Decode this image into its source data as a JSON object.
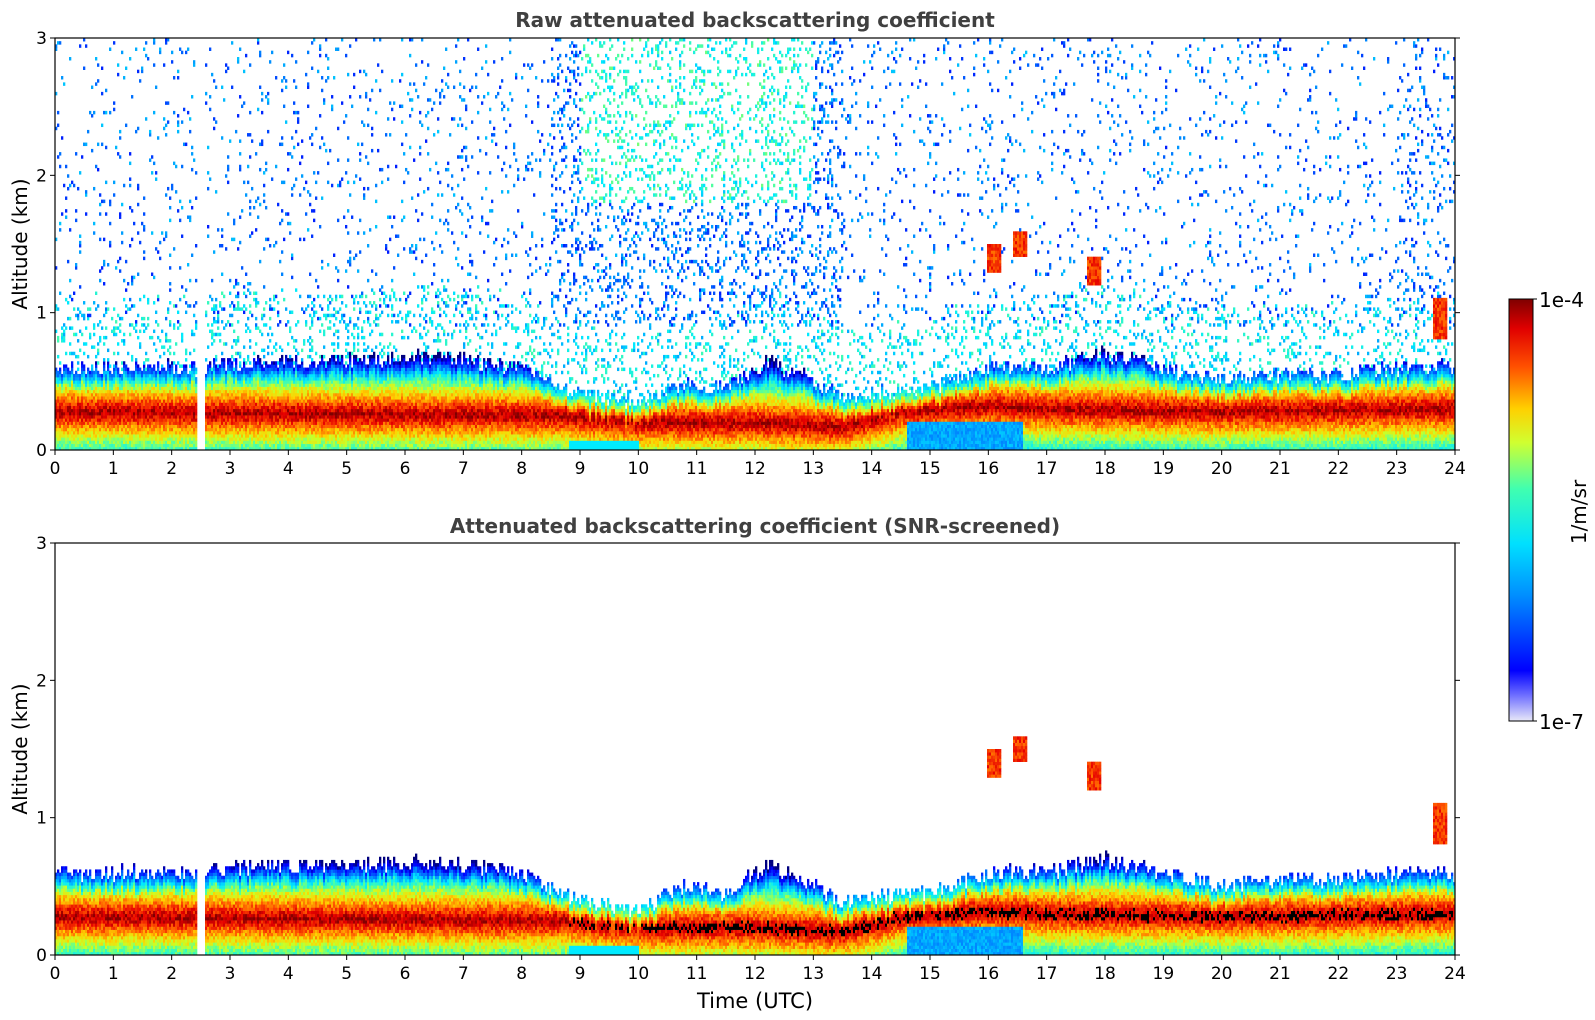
{
  "chart_data": [
    {
      "type": "heatmap",
      "title": "Raw attenuated backscattering coefficient",
      "xlabel": "",
      "ylabel": "Altitude (km)",
      "xlim": [
        0,
        24
      ],
      "ylim": [
        0,
        3
      ],
      "x_ticks": [
        0,
        1,
        2,
        3,
        4,
        5,
        6,
        7,
        8,
        9,
        10,
        11,
        12,
        13,
        14,
        15,
        16,
        17,
        18,
        19,
        20,
        21,
        22,
        23,
        24
      ],
      "y_ticks": [
        0,
        1,
        2,
        3
      ],
      "data_gap_hours": [
        [
          2.43,
          2.58
        ]
      ],
      "boundary_layer_top_km": [
        [
          0,
          0.6
        ],
        [
          2.4,
          0.6
        ],
        [
          3.5,
          0.65
        ],
        [
          5,
          0.65
        ],
        [
          6.5,
          0.68
        ],
        [
          8,
          0.6
        ],
        [
          8.8,
          0.42
        ],
        [
          10,
          0.33
        ],
        [
          10.8,
          0.5
        ],
        [
          11.5,
          0.45
        ],
        [
          12.2,
          0.65
        ],
        [
          13,
          0.5
        ],
        [
          13.5,
          0.38
        ],
        [
          14.2,
          0.42
        ],
        [
          15,
          0.45
        ],
        [
          16,
          0.6
        ],
        [
          17,
          0.6
        ],
        [
          18,
          0.7
        ],
        [
          19,
          0.6
        ],
        [
          20,
          0.5
        ],
        [
          21,
          0.55
        ],
        [
          22,
          0.55
        ],
        [
          23,
          0.6
        ],
        [
          24,
          0.6
        ]
      ],
      "dense_core_km": [
        [
          0,
          0.28
        ],
        [
          8.8,
          0.25
        ],
        [
          10,
          0.2
        ],
        [
          12,
          0.2
        ],
        [
          13.5,
          0.17
        ],
        [
          14.5,
          0.28
        ],
        [
          16,
          0.32
        ],
        [
          17,
          0.3
        ],
        [
          20,
          0.28
        ],
        [
          24,
          0.3
        ]
      ],
      "elevated_layers": [
        {
          "time_h": 16.1,
          "altitude_km": [
            1.3,
            1.5
          ]
        },
        {
          "time_h": 16.55,
          "altitude_km": [
            1.4,
            1.6
          ]
        },
        {
          "time_h": 17.8,
          "altitude_km": [
            1.2,
            1.4
          ]
        },
        {
          "time_h": 23.75,
          "altitude_km": [
            0.8,
            1.1
          ]
        }
      ],
      "colorbar": {
        "min": "1e-7",
        "max": "1e-4",
        "label": "1/m/sr",
        "scale": "log",
        "colormap": "jet"
      }
    },
    {
      "type": "heatmap",
      "title": "Attenuated backscattering coefficient (SNR-screened)",
      "xlabel": "Time (UTC)",
      "ylabel": "Altitude (km)",
      "xlim": [
        0,
        24
      ],
      "ylim": [
        0,
        3
      ],
      "x_ticks": [
        0,
        1,
        2,
        3,
        4,
        5,
        6,
        7,
        8,
        9,
        10,
        11,
        12,
        13,
        14,
        15,
        16,
        17,
        18,
        19,
        20,
        21,
        22,
        23,
        24
      ],
      "y_ticks": [
        0,
        1,
        2,
        3
      ],
      "data_gap_hours": [
        [
          2.43,
          2.58
        ]
      ],
      "note_values_above_colorbar_max_shown_black": true
    }
  ],
  "colorbar": {
    "max_label": "1e-4",
    "min_label": "1e-7",
    "unit_label": "1/m/sr"
  },
  "colors": {
    "jet": [
      "#00007f",
      "#0000ff",
      "#007fff",
      "#00ffff",
      "#7fff7f",
      "#ffff00",
      "#ff7f00",
      "#ff0000",
      "#7f0000"
    ],
    "title_text": "#404040",
    "saturated": "#000000"
  }
}
